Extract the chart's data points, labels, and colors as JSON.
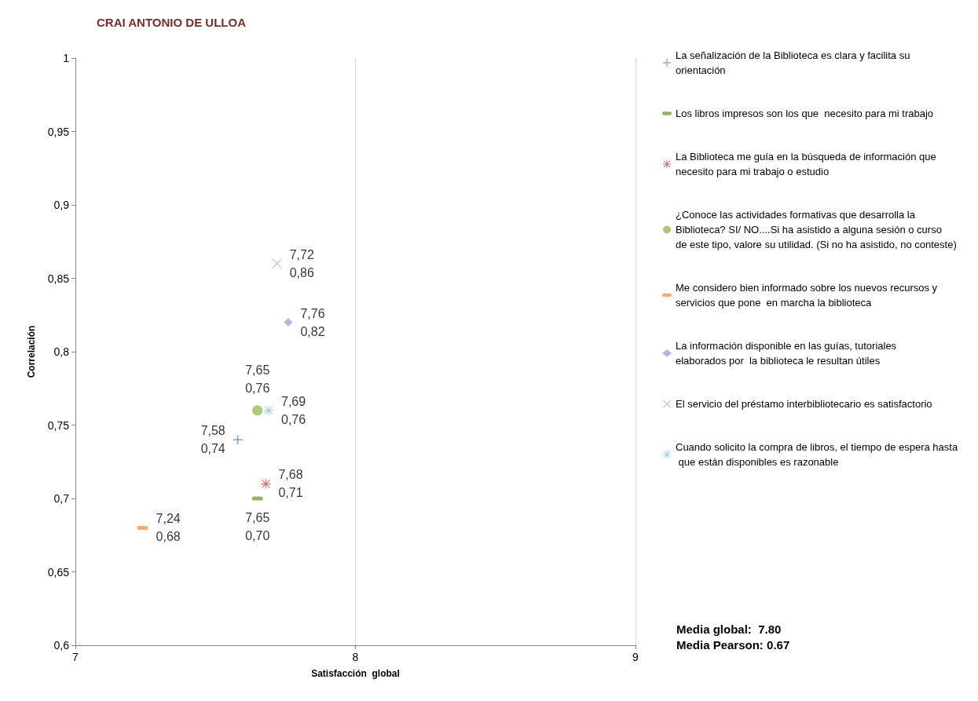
{
  "chart_data": {
    "type": "scatter",
    "title": "CRAI ANTONIO DE ULLOA",
    "xlabel": "Satisfacción  global",
    "ylabel": "Correlación",
    "xlim": [
      7,
      9
    ],
    "xticks": [
      7,
      8,
      9
    ],
    "ylim": [
      0.6,
      1
    ],
    "yticks": [
      {
        "value": 0.6,
        "label": "0,6"
      },
      {
        "value": 0.65,
        "label": "0,65"
      },
      {
        "value": 0.7,
        "label": "0,7"
      },
      {
        "value": 0.75,
        "label": "0,75"
      },
      {
        "value": 0.8,
        "label": "0,8"
      },
      {
        "value": 0.85,
        "label": "0,85"
      },
      {
        "value": 0.9,
        "label": "0,9"
      },
      {
        "value": 0.95,
        "label": "0,95"
      },
      {
        "value": 1,
        "label": "1"
      }
    ],
    "grid": "x",
    "legend": "right",
    "series": [
      {
        "name": "La señalización de la Biblioteca es clara y facilita su orientación",
        "color": "#4472c4",
        "marker": "plus",
        "x": [
          7.58
        ],
        "values": [
          0.74
        ],
        "value_labels": [
          "7,58\n0,74"
        ]
      },
      {
        "name": "Los libros impresos son los que  necesito para mi trabajo",
        "color": "#77a03a",
        "x": [
          7.65
        ],
        "values": [
          0.7
        ],
        "value_labels": [
          "7,65\n0,70"
        ]
      },
      {
        "name": "La Biblioteca me guía en la búsqueda de información que necesito para mi trabajo o estudio",
        "color": "#c0504d",
        "marker": "asterisk",
        "x": [
          7.68
        ],
        "values": [
          0.71
        ],
        "value_labels": [
          "7,68\n0,71"
        ]
      },
      {
        "name": "¿Conoce las actividades formativas que desarrolla la Biblioteca? SI/ NO....Si ha asistido a alguna sesión o curso de este tipo, valore su utilidad. (Si no ha asistido, no conteste)",
        "color": "#9bbb59",
        "marker": "circle",
        "x": [
          7.65
        ],
        "values": [
          0.76
        ],
        "value_labels": [
          "7,65\n0,76"
        ]
      },
      {
        "name": "Me considero bien informado sobre los nuevos recursos y servicios que pone  en marcha la biblioteca",
        "color": "#f79646",
        "x": [
          7.24
        ],
        "values": [
          0.68
        ],
        "value_labels": [
          "7,24\n0,68"
        ]
      },
      {
        "name": "La información disponible en las guías, tutoriales elaborados por  la biblioteca le resultan útiles",
        "color": "#9aaad4",
        "marker": "diamond",
        "x": [
          7.76
        ],
        "values": [
          0.82
        ],
        "value_labels": [
          "7,76\n0,82"
        ]
      },
      {
        "name": "El servicio del préstamo interbibliotecario es satisfactorio",
        "color": "#b0b0c8",
        "marker": "x",
        "x": [
          7.72
        ],
        "values": [
          0.86
        ],
        "value_labels": [
          "7,72\n0,86"
        ]
      },
      {
        "name": "Cuando solicito la compra de libros, el tiempo de espera hasta que están disponibles es razonable",
        "color": "#8fc4dc",
        "marker": "asterisk",
        "x": [
          7.69
        ],
        "values": [
          0.76
        ],
        "value_labels": [
          "7,69\n0,76"
        ]
      }
    ],
    "annotations": [
      "Media global:  7.80",
      "Media Pearson: 0.67"
    ]
  }
}
